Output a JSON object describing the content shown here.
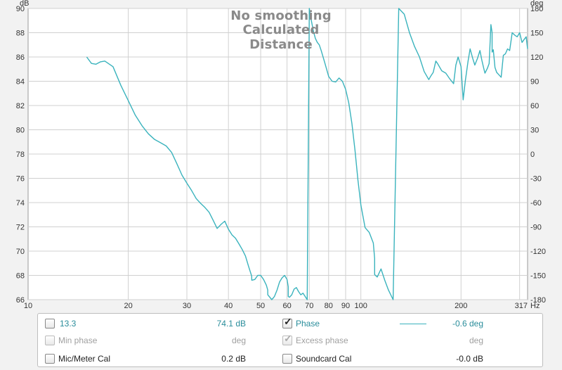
{
  "titles": [
    "No smoothing",
    "Calculated Distance"
  ],
  "colors": {
    "trace": "#3ab3bd",
    "grid": "#d0d0d0",
    "accent_text": "#2a8d9b"
  },
  "chart_data": {
    "type": "line",
    "x_scale": "log",
    "xlim": [
      10,
      317
    ],
    "x_ticks": [
      "10",
      "20",
      "30",
      "40",
      "50",
      "60",
      "70",
      "80",
      "90",
      "100",
      "200",
      "317"
    ],
    "x_unit": "Hz",
    "ylabel": "dB",
    "ylim": [
      66,
      90
    ],
    "y_ticks": [
      "66",
      "68",
      "70",
      "72",
      "74",
      "76",
      "78",
      "80",
      "82",
      "84",
      "86",
      "88",
      "90"
    ],
    "y2label": "deg",
    "y2lim": [
      -180,
      180
    ],
    "y2_ticks": [
      "-180",
      "-150",
      "-120",
      "-90",
      "-60",
      "-30",
      "0",
      "30",
      "60",
      "90",
      "120",
      "150",
      "180"
    ],
    "grid": true,
    "series": [
      {
        "name": "Phase",
        "axis": "right",
        "x": [
          15,
          15.5,
          16,
          16.5,
          17,
          18,
          19,
          20,
          21,
          22,
          23,
          24,
          25,
          26,
          27,
          28,
          29,
          30,
          31,
          32,
          33,
          34,
          35,
          36,
          37,
          38,
          39,
          40,
          41,
          42,
          43,
          44,
          45,
          46,
          47,
          47.01,
          48,
          49,
          50,
          51,
          52,
          52.5,
          52.51,
          54,
          55,
          56,
          57,
          58,
          59,
          60,
          60.5,
          60.51,
          61,
          62,
          63,
          64,
          65,
          66,
          67,
          68,
          69,
          70,
          71,
          72,
          73,
          74,
          75,
          76,
          78,
          80,
          82,
          84,
          86,
          88,
          90,
          92,
          94,
          96,
          98,
          100,
          103,
          106,
          109,
          110,
          110.01,
          112,
          115,
          118,
          121,
          125,
          130,
          135,
          140,
          145,
          150,
          155,
          160,
          162,
          165,
          168,
          170,
          175,
          180,
          185,
          190,
          193,
          196,
          200,
          203,
          206,
          210,
          213,
          217,
          220,
          224,
          228,
          231,
          234,
          236,
          240,
          243,
          246,
          248,
          248.01,
          250,
          253,
          256,
          260,
          264,
          268,
          272,
          276,
          280,
          285,
          290,
          295,
          300,
          305,
          310,
          314,
          317
        ],
        "y": [
          120,
          112,
          111,
          114,
          115,
          108,
          85,
          66,
          48,
          35,
          25,
          18,
          14,
          10,
          2,
          -12,
          -26,
          -36,
          -45,
          -55,
          -61,
          -66,
          -72,
          -82,
          -92,
          -87,
          -83,
          -93,
          -100,
          -104,
          -111,
          -118,
          -126,
          -139,
          -151,
          -156,
          -155,
          -150,
          -150,
          -155,
          -162,
          -168,
          -174,
          -180,
          -176,
          -168,
          -158,
          -153,
          -150,
          -155,
          -164,
          -176,
          -177,
          -174,
          -167,
          -165,
          -170,
          -174,
          -172,
          -176,
          -180,
          180,
          165,
          152,
          143,
          138,
          135,
          128,
          112,
          96,
          90,
          89,
          94,
          90,
          80,
          63,
          38,
          5,
          -32,
          -63,
          -91,
          -97,
          -110,
          -129,
          -149,
          -152,
          -142,
          -156,
          -168,
          -180,
          180,
          173,
          150,
          133,
          120,
          102,
          92,
          96,
          101,
          115,
          112,
          103,
          100,
          93,
          87,
          110,
          120,
          108,
          67,
          90,
          115,
          130,
          118,
          110,
          118,
          128,
          116,
          106,
          100,
          106,
          112,
          160,
          150,
          126,
          129,
          107,
          101,
          98,
          95,
          122,
          124,
          130,
          128,
          150,
          147,
          145,
          150,
          138,
          142,
          145,
          130
        ]
      }
    ]
  },
  "legend": {
    "rows": [
      {
        "label": "13.3",
        "value": "74.1 dB",
        "right_label": "Phase",
        "right_value": "-0.6 deg"
      },
      {
        "label": "Min phase",
        "value": "deg",
        "right_label": "Excess phase",
        "right_value": "deg"
      },
      {
        "label": "Mic/Meter Cal",
        "value": "0.2 dB",
        "right_label": "Soundcard Cal",
        "right_value": "-0.0 dB"
      }
    ]
  }
}
